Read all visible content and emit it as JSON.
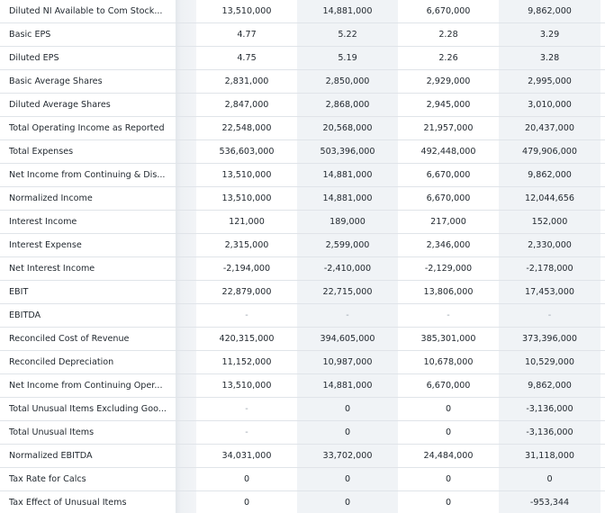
{
  "table": {
    "rows": [
      {
        "label": "Diluted NI Available to Com Stock...",
        "values": [
          "13,510,000",
          "14,881,000",
          "6,670,000",
          "9,862,000"
        ]
      },
      {
        "label": "Basic EPS",
        "values": [
          "4.77",
          "5.22",
          "2.28",
          "3.29"
        ]
      },
      {
        "label": "Diluted EPS",
        "values": [
          "4.75",
          "5.19",
          "2.26",
          "3.28"
        ]
      },
      {
        "label": "Basic Average Shares",
        "values": [
          "2,831,000",
          "2,850,000",
          "2,929,000",
          "2,995,000"
        ]
      },
      {
        "label": "Diluted Average Shares",
        "values": [
          "2,847,000",
          "2,868,000",
          "2,945,000",
          "3,010,000"
        ]
      },
      {
        "label": "Total Operating Income as Reported",
        "values": [
          "22,548,000",
          "20,568,000",
          "21,957,000",
          "20,437,000"
        ]
      },
      {
        "label": "Total Expenses",
        "values": [
          "536,603,000",
          "503,396,000",
          "492,448,000",
          "479,906,000"
        ]
      },
      {
        "label": "Net Income from Continuing & Dis...",
        "values": [
          "13,510,000",
          "14,881,000",
          "6,670,000",
          "9,862,000"
        ]
      },
      {
        "label": "Normalized Income",
        "values": [
          "13,510,000",
          "14,881,000",
          "6,670,000",
          "12,044,656"
        ]
      },
      {
        "label": "Interest Income",
        "values": [
          "121,000",
          "189,000",
          "217,000",
          "152,000"
        ]
      },
      {
        "label": "Interest Expense",
        "values": [
          "2,315,000",
          "2,599,000",
          "2,346,000",
          "2,330,000"
        ]
      },
      {
        "label": "Net Interest Income",
        "values": [
          "-2,194,000",
          "-2,410,000",
          "-2,129,000",
          "-2,178,000"
        ]
      },
      {
        "label": "EBIT",
        "values": [
          "22,879,000",
          "22,715,000",
          "13,806,000",
          "17,453,000"
        ]
      },
      {
        "label": "EBITDA",
        "values": [
          "-",
          "-",
          "-",
          "-"
        ]
      },
      {
        "label": "Reconciled Cost of Revenue",
        "values": [
          "420,315,000",
          "394,605,000",
          "385,301,000",
          "373,396,000"
        ]
      },
      {
        "label": "Reconciled Depreciation",
        "values": [
          "11,152,000",
          "10,987,000",
          "10,678,000",
          "10,529,000"
        ]
      },
      {
        "label": "Net Income from Continuing Oper...",
        "values": [
          "13,510,000",
          "14,881,000",
          "6,670,000",
          "9,862,000"
        ]
      },
      {
        "label": "Total Unusual Items Excluding Goo...",
        "values": [
          "-",
          "0",
          "0",
          "-3,136,000"
        ]
      },
      {
        "label": "Total Unusual Items",
        "values": [
          "-",
          "0",
          "0",
          "-3,136,000"
        ]
      },
      {
        "label": "Normalized EBITDA",
        "values": [
          "34,031,000",
          "33,702,000",
          "24,484,000",
          "31,118,000"
        ]
      },
      {
        "label": "Tax Rate for Calcs",
        "values": [
          "0",
          "0",
          "0",
          "0"
        ]
      },
      {
        "label": "Tax Effect of Unusual Items",
        "values": [
          "0",
          "0",
          "0",
          "-953,344"
        ]
      }
    ]
  }
}
